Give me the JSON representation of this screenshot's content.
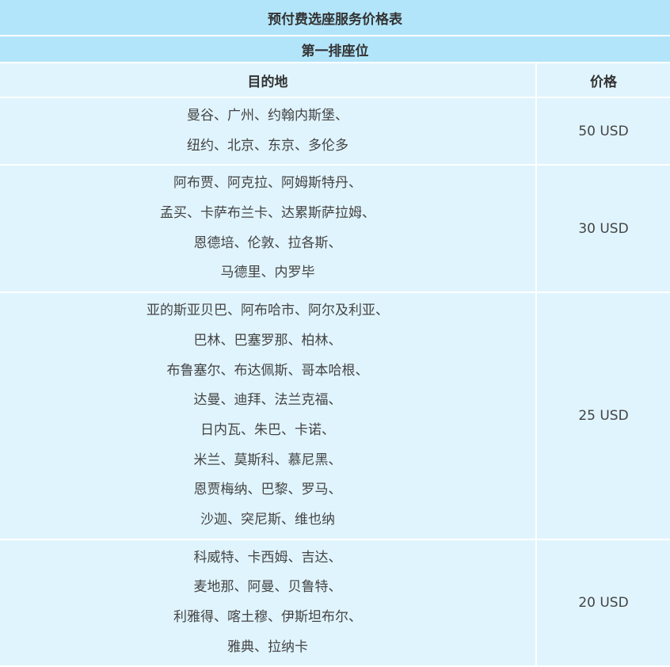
{
  "title": "预付费选座服务价格表",
  "subtitle": "第一排座位",
  "columns": {
    "destination": "目的地",
    "price": "价格"
  },
  "rows": [
    {
      "lines": [
        "曼谷、广州、约翰内斯堡、",
        "纽约、北京、东京、多伦多"
      ],
      "price": "50 USD"
    },
    {
      "lines": [
        "阿布贾、阿克拉、阿姆斯特丹、",
        "孟买、卡萨布兰卡、达累斯萨拉姆、",
        "恩德培、伦敦、拉各斯、",
        "马德里、内罗毕"
      ],
      "price": "30 USD"
    },
    {
      "lines": [
        "亚的斯亚贝巴、阿布哈市、阿尔及利亚、",
        "巴林、巴塞罗那、柏林、",
        "布鲁塞尔、布达佩斯、哥本哈根、",
        "达曼、迪拜、法兰克福、",
        "日内瓦、朱巴、卡诺、",
        "米兰、莫斯科、慕尼黑、",
        "恩贾梅纳、巴黎、罗马、",
        "沙迦、突尼斯、维也纳"
      ],
      "price": "25 USD"
    },
    {
      "lines": [
        "科威特、卡西姆、吉达、",
        "麦地那、阿曼、贝鲁特、",
        "利雅得、喀土穆、伊斯坦布尔、",
        "雅典、拉纳卡"
      ],
      "price": "20 USD"
    }
  ]
}
